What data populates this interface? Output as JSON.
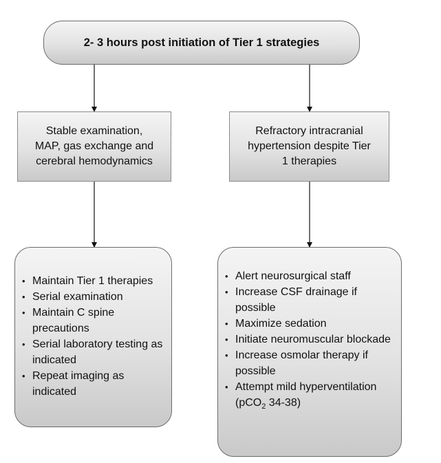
{
  "top": {
    "title": "2- 3 hours post initiation of Tier 1 strategies"
  },
  "left": {
    "middle_lines": [
      "Stable examination,",
      "MAP, gas exchange and",
      "cerebral hemodynamics"
    ],
    "items": [
      "Maintain Tier 1 therapies",
      "Serial examination",
      "Maintain C spine precautions",
      "Serial laboratory testing as indicated",
      "Repeat imaging as indicated"
    ]
  },
  "right": {
    "middle_lines": [
      "Refractory intracranial",
      "hypertension despite Tier",
      "1 therapies"
    ],
    "items": [
      "Alert neurosurgical staff",
      "Increase CSF drainage if possible",
      "Maximize sedation",
      "Initiate neuromuscular blockade",
      "Increase osmolar therapy if possible"
    ],
    "last_item": {
      "text": "Attempt mild hyperventilation (pCO",
      "subscript": "2",
      "suffix": " 34-38)"
    }
  }
}
